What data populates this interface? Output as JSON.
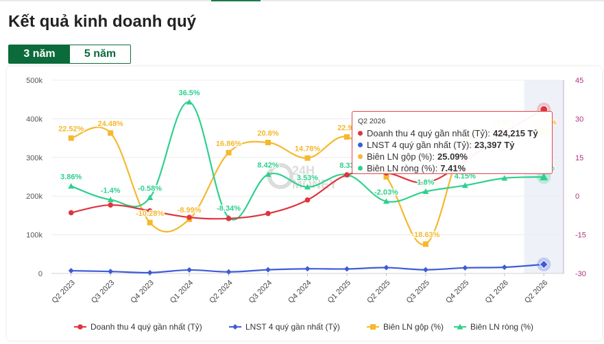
{
  "page": {
    "title": "Kết quả kinh doanh quý",
    "tabs": [
      {
        "label": "3 năm",
        "active": true
      },
      {
        "label": "5 năm",
        "active": false
      }
    ]
  },
  "watermark": {
    "text": "24H MONEY"
  },
  "colors": {
    "revenue": "#e0343d",
    "profit": "#3d5bd9",
    "gross_margin": "#f5b82e",
    "net_margin": "#2ed08e",
    "right_axis_text": "#b0327e",
    "left_axis_text": "#555555",
    "tab_green": "#0b6b3a"
  },
  "tooltip": {
    "header": "Q2 2026",
    "rows": [
      {
        "label": "Doanh thu 4 quý gần nhất (Tỷ):",
        "value": "424,215 Tỷ",
        "color": "#e0343d"
      },
      {
        "label": "LNST 4 quý gần nhất (Tỷ):",
        "value": "23,397 Tỷ",
        "color": "#3d5bd9"
      },
      {
        "label": "Biên LN gộp (%):",
        "value": "25.09%",
        "color": "#f5b82e"
      },
      {
        "label": "Biên LN ròng (%):",
        "value": "7.41%",
        "color": "#2ed08e"
      }
    ]
  },
  "chart_data": {
    "type": "line",
    "categories": [
      "Q2 2023",
      "Q3 2023",
      "Q4 2023",
      "Q1 2024",
      "Q2 2024",
      "Q3 2024",
      "Q4 2024",
      "Q1 2025",
      "Q2 2025",
      "Q3 2025",
      "Q4 2025",
      "Q1 2026",
      "Q2 2026"
    ],
    "y_left": {
      "ticks": [
        "0",
        "100k",
        "200k",
        "300k",
        "400k",
        "500k"
      ],
      "range": [
        0,
        500000
      ]
    },
    "y_right": {
      "ticks": [
        "-30",
        "-15",
        "0",
        "15",
        "30",
        "45"
      ],
      "range": [
        -30,
        45
      ]
    },
    "highlighted_category": "Q2 2026",
    "legend_position": "bottom",
    "series": [
      {
        "name": "Doanh thu 4 quý gần nhất (Tỷ)",
        "axis": "left",
        "marker": "circle",
        "smooth": true,
        "values": [
          157000,
          177000,
          162000,
          145000,
          142000,
          155000,
          190000,
          255000,
          260000,
          235000,
          290000,
          365000,
          424215
        ]
      },
      {
        "name": "LNST 4 quý gần nhất (Tỷ)",
        "axis": "left",
        "marker": "diamond",
        "smooth": true,
        "values": [
          7000,
          5000,
          2000,
          9000,
          4000,
          9500,
          12000,
          11500,
          15000,
          9500,
          14500,
          16000,
          23397
        ]
      },
      {
        "name": "Biên LN gộp (%)",
        "axis": "right",
        "marker": "square",
        "smooth": true,
        "values": [
          22.52,
          24.48,
          -10.28,
          -8.99,
          16.86,
          20.8,
          14.78,
          22.97,
          7.5,
          -18.63,
          22.0,
          24.86,
          25.09
        ],
        "data_labels": [
          "22.52%",
          "24.48%",
          "-10.28%",
          "-8.99%",
          "16.86%",
          "20.8%",
          "14.78%",
          "22.97",
          "",
          "-18.63%",
          "",
          "24.86%",
          "25.09%"
        ]
      },
      {
        "name": "Biên LN ròng (%)",
        "axis": "right",
        "marker": "triangle",
        "smooth": true,
        "values": [
          3.86,
          -1.4,
          -0.58,
          36.5,
          -8.34,
          8.42,
          3.53,
          8.33,
          -2.03,
          1.8,
          4.15,
          6.97,
          7.41
        ],
        "data_labels": [
          "3.86%",
          "-1.4%",
          "-0.58%",
          "36.5%",
          "-8.34%",
          "8.42%",
          "3.53%",
          "8.33",
          "-2.03%",
          "1.8%",
          "4.15%",
          "6.97%",
          "7.41%"
        ]
      }
    ]
  }
}
